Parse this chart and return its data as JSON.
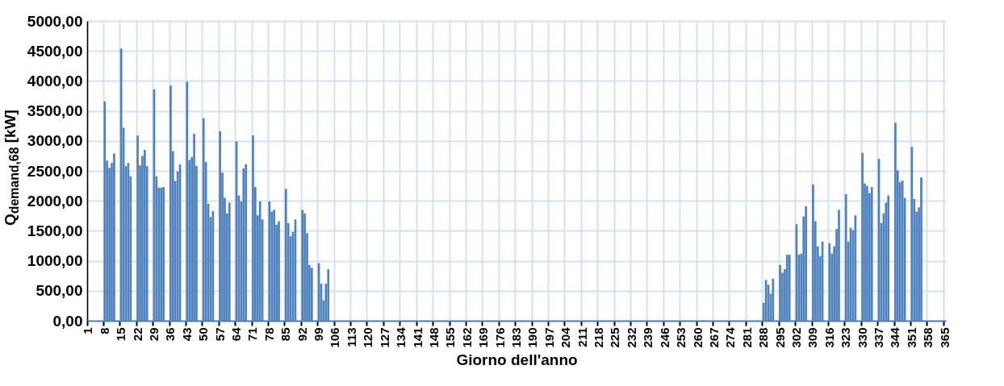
{
  "chart_data": {
    "type": "bar",
    "xlabel": "Giorno dell'anno",
    "ylabel": "Q$_{demand,68}$ [kW]",
    "color": "#4f81bd",
    "grid": true,
    "ylim": [
      0,
      5000
    ],
    "yticks": [
      {
        "value": 0,
        "label": "0,00"
      },
      {
        "value": 500,
        "label": "500,00"
      },
      {
        "value": 1000,
        "label": "1000,00"
      },
      {
        "value": 1500,
        "label": "1500,00"
      },
      {
        "value": 2000,
        "label": "2000,00"
      },
      {
        "value": 2500,
        "label": "2500,00"
      },
      {
        "value": 3000,
        "label": "3000,00"
      },
      {
        "value": 3500,
        "label": "3500,00"
      },
      {
        "value": 4000,
        "label": "4000,00"
      },
      {
        "value": 4500,
        "label": "4500,00"
      },
      {
        "value": 5000,
        "label": "5000,00"
      }
    ],
    "categories": [
      "1",
      null,
      null,
      null,
      null,
      null,
      null,
      "8",
      null,
      null,
      null,
      null,
      null,
      null,
      "15",
      null,
      null,
      null,
      null,
      null,
      null,
      "22",
      null,
      null,
      null,
      null,
      null,
      null,
      "29",
      null,
      null,
      null,
      null,
      null,
      null,
      "36",
      null,
      null,
      null,
      null,
      null,
      null,
      "43",
      null,
      null,
      null,
      null,
      null,
      null,
      "50",
      null,
      null,
      null,
      null,
      null,
      null,
      "57",
      null,
      null,
      null,
      null,
      null,
      null,
      "64",
      null,
      null,
      null,
      null,
      null,
      null,
      "71",
      null,
      null,
      null,
      null,
      null,
      null,
      "78",
      null,
      null,
      null,
      null,
      null,
      null,
      "85",
      null,
      null,
      null,
      null,
      null,
      null,
      "92",
      null,
      null,
      null,
      null,
      null,
      null,
      "99",
      null,
      null,
      null,
      null,
      null,
      null,
      "106",
      null,
      null,
      null,
      null,
      null,
      null,
      "113",
      null,
      null,
      null,
      null,
      null,
      null,
      "120",
      null,
      null,
      null,
      null,
      null,
      null,
      "127",
      null,
      null,
      null,
      null,
      null,
      null,
      "134",
      null,
      null,
      null,
      null,
      null,
      null,
      "141",
      null,
      null,
      null,
      null,
      null,
      null,
      "148",
      null,
      null,
      null,
      null,
      null,
      null,
      "155",
      null,
      null,
      null,
      null,
      null,
      null,
      "162",
      null,
      null,
      null,
      null,
      null,
      null,
      "169",
      null,
      null,
      null,
      null,
      null,
      null,
      "176",
      null,
      null,
      null,
      null,
      null,
      null,
      "183",
      null,
      null,
      null,
      null,
      null,
      null,
      "190",
      null,
      null,
      null,
      null,
      null,
      null,
      "197",
      null,
      null,
      null,
      null,
      null,
      null,
      "204",
      null,
      null,
      null,
      null,
      null,
      null,
      "211",
      null,
      null,
      null,
      null,
      null,
      null,
      "218",
      null,
      null,
      null,
      null,
      null,
      null,
      "225",
      null,
      null,
      null,
      null,
      null,
      null,
      "232",
      null,
      null,
      null,
      null,
      null,
      null,
      "239",
      null,
      null,
      null,
      null,
      null,
      null,
      "246",
      null,
      null,
      null,
      null,
      null,
      null,
      "253",
      null,
      null,
      null,
      null,
      null,
      null,
      "260",
      null,
      null,
      null,
      null,
      null,
      null,
      "267",
      null,
      null,
      null,
      null,
      null,
      null,
      "274",
      null,
      null,
      null,
      null,
      null,
      null,
      "281",
      null,
      null,
      null,
      null,
      null,
      null,
      "288",
      null,
      null,
      null,
      null,
      null,
      null,
      "295",
      null,
      null,
      null,
      null,
      null,
      null,
      "302",
      null,
      null,
      null,
      null,
      null,
      null,
      "309",
      null,
      null,
      null,
      null,
      null,
      null,
      "316",
      null,
      null,
      null,
      null,
      null,
      null,
      "323",
      null,
      null,
      null,
      null,
      null,
      null,
      "330",
      null,
      null,
      null,
      null,
      null,
      null,
      "337",
      null,
      null,
      null,
      null,
      null,
      null,
      "344",
      null,
      null,
      null,
      null,
      null,
      null,
      "351",
      null,
      null,
      null,
      null,
      null,
      null,
      "358",
      null,
      null,
      null,
      null,
      null,
      null,
      "365"
    ],
    "values": [
      0,
      0,
      0,
      0,
      0,
      0,
      0,
      3660,
      2670,
      2550,
      2630,
      2790,
      0,
      0,
      4540,
      3220,
      2580,
      2630,
      2410,
      0,
      0,
      3090,
      2590,
      2750,
      2850,
      2580,
      0,
      0,
      3860,
      2410,
      2220,
      2220,
      2230,
      0,
      0,
      3920,
      2830,
      2330,
      2490,
      2610,
      0,
      0,
      3990,
      2680,
      2730,
      3120,
      2580,
      0,
      0,
      3380,
      2650,
      1950,
      1730,
      1830,
      0,
      0,
      3160,
      2470,
      2050,
      1790,
      1970,
      0,
      0,
      2990,
      2090,
      1990,
      2540,
      2610,
      0,
      0,
      3090,
      2230,
      1760,
      1990,
      1690,
      0,
      0,
      1990,
      1820,
      1850,
      1600,
      1660,
      0,
      0,
      2200,
      1630,
      1410,
      1480,
      1690,
      0,
      0,
      1850,
      1790,
      1460,
      930,
      880,
      0,
      0,
      960,
      620,
      340,
      620,
      860,
      0,
      0,
      0,
      0,
      0,
      0,
      0,
      0,
      0,
      0,
      0,
      0,
      0,
      0,
      0,
      0,
      0,
      0,
      0,
      0,
      0,
      0,
      0,
      0,
      0,
      0,
      0,
      0,
      0,
      0,
      0,
      0,
      0,
      0,
      0,
      0,
      0,
      0,
      0,
      0,
      0,
      0,
      0,
      0,
      0,
      0,
      0,
      0,
      0,
      0,
      0,
      0,
      0,
      0,
      0,
      0,
      0,
      0,
      0,
      0,
      0,
      0,
      0,
      0,
      0,
      0,
      0,
      0,
      0,
      0,
      0,
      0,
      0,
      0,
      0,
      0,
      0,
      0,
      0,
      0,
      0,
      0,
      0,
      0,
      0,
      0,
      0,
      0,
      0,
      0,
      0,
      0,
      0,
      0,
      0,
      0,
      0,
      0,
      0,
      0,
      0,
      0,
      0,
      0,
      0,
      0,
      0,
      0,
      0,
      0,
      0,
      0,
      0,
      0,
      0,
      0,
      0,
      0,
      0,
      0,
      0,
      0,
      0,
      0,
      0,
      0,
      0,
      0,
      0,
      0,
      0,
      0,
      0,
      0,
      0,
      0,
      0,
      0,
      0,
      0,
      0,
      0,
      0,
      0,
      0,
      0,
      0,
      0,
      0,
      0,
      0,
      0,
      0,
      0,
      0,
      0,
      0,
      0,
      0,
      0,
      0,
      0,
      0,
      0,
      0,
      0,
      0,
      0,
      0,
      0,
      0,
      0,
      0,
      0,
      0,
      0,
      0,
      0,
      0,
      0,
      0,
      0,
      0,
      0,
      300,
      680,
      600,
      450,
      700,
      0,
      0,
      930,
      800,
      860,
      1100,
      1100,
      0,
      0,
      1610,
      1100,
      1120,
      1740,
      1910,
      0,
      0,
      2270,
      1660,
      1240,
      1080,
      1320,
      0,
      0,
      1290,
      1120,
      1240,
      1530,
      1850,
      0,
      0,
      2110,
      1320,
      1550,
      1510,
      1760,
      0,
      0,
      2800,
      2290,
      2250,
      2130,
      2230,
      0,
      0,
      2700,
      1630,
      1790,
      1970,
      2090,
      0,
      0,
      3300,
      2510,
      2310,
      2340,
      2050,
      0,
      0,
      2900,
      2030,
      1820,
      1890,
      2390,
      0,
      0,
      0,
      0,
      0,
      0,
      0,
      0,
      0,
      0
    ]
  }
}
